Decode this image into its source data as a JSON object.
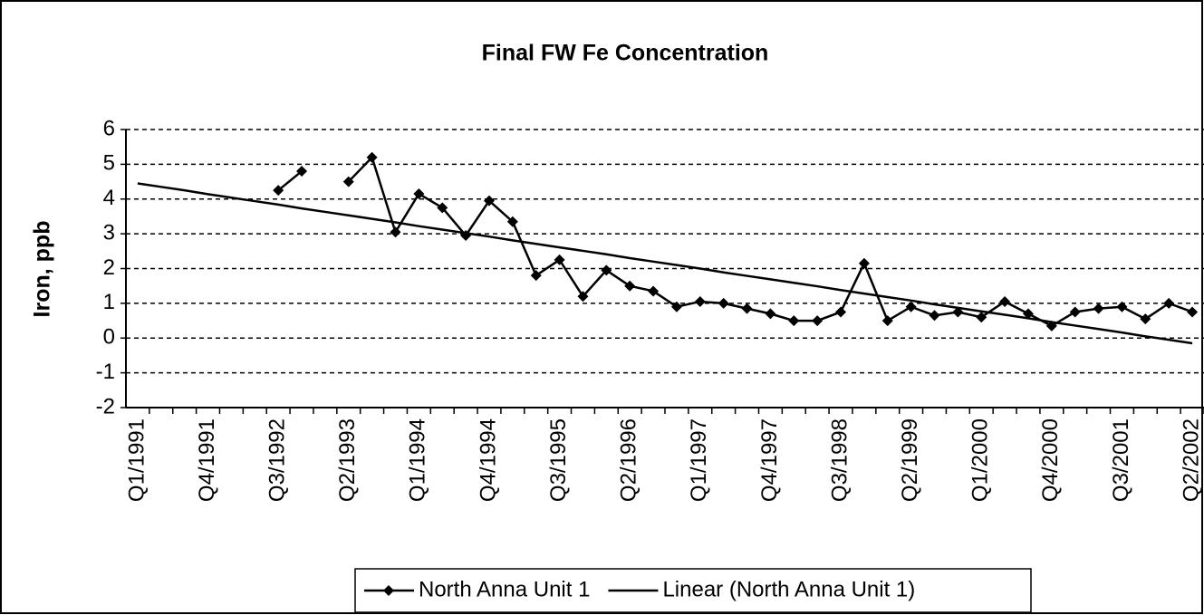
{
  "chart_data": {
    "type": "line",
    "title": "Final FW Fe Concentration",
    "y_label": "Iron, ppb",
    "categories": [
      "Q1/1991",
      null,
      null,
      "Q4/1991",
      null,
      null,
      "Q3/1992",
      null,
      null,
      "Q2/1993",
      null,
      null,
      "Q1/1994",
      null,
      null,
      "Q4/1994",
      null,
      null,
      "Q3/1995",
      null,
      null,
      "Q2/1996",
      null,
      null,
      "Q1/1997",
      null,
      null,
      "Q4/1997",
      null,
      null,
      "Q3/1998",
      null,
      null,
      "Q2/1999",
      null,
      null,
      "Q1/2000",
      null,
      null,
      "Q4/2000",
      null,
      null,
      "Q3/2001",
      null,
      null,
      "Q2/2002"
    ],
    "series": [
      {
        "name": "North Anna Unit 1",
        "color": "#000000",
        "marker": "diamond",
        "values": [
          null,
          null,
          null,
          null,
          null,
          null,
          4.25,
          4.8,
          null,
          4.5,
          5.2,
          3.05,
          4.15,
          3.75,
          2.95,
          3.95,
          3.35,
          1.8,
          2.25,
          1.2,
          1.95,
          1.5,
          1.35,
          0.9,
          1.05,
          1.0,
          0.85,
          0.7,
          0.5,
          0.5,
          0.75,
          2.15,
          0.5,
          0.9,
          0.65,
          0.75,
          0.6,
          1.05,
          0.7,
          0.35,
          0.75,
          0.85,
          0.9,
          0.55,
          1.0,
          0.75
        ]
      },
      {
        "name": "Linear (North Anna Unit 1)",
        "color": "#000000",
        "marker": null,
        "values": [
          4.45,
          4.35,
          4.25,
          4.14,
          4.04,
          3.94,
          3.84,
          3.73,
          3.63,
          3.53,
          3.43,
          3.33,
          3.22,
          3.12,
          3.02,
          2.92,
          2.81,
          2.71,
          2.61,
          2.51,
          2.41,
          2.3,
          2.2,
          2.1,
          2.0,
          1.89,
          1.79,
          1.69,
          1.59,
          1.49,
          1.38,
          1.28,
          1.18,
          1.08,
          0.97,
          0.87,
          0.77,
          0.67,
          0.57,
          0.46,
          0.36,
          0.26,
          0.16,
          0.05,
          -0.05,
          -0.15
        ]
      }
    ],
    "ylim": [
      -2,
      6
    ],
    "yticks": [
      -2,
      -1,
      0,
      1,
      2,
      3,
      4,
      5,
      6
    ],
    "grid": true,
    "legend": "bottom"
  }
}
